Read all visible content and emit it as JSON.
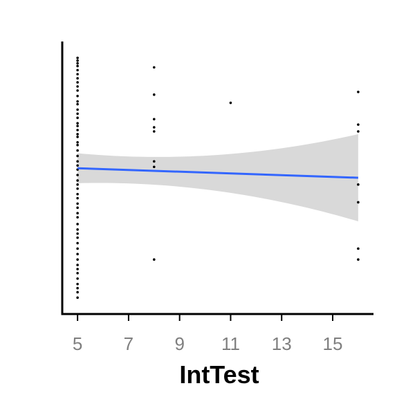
{
  "chart_data": {
    "type": "scatter",
    "title": "",
    "xlabel": "IntTest",
    "ylabel": "",
    "xlim": [
      4.4,
      16.6
    ],
    "ylim": [
      0,
      100
    ],
    "x_ticks": [
      5,
      7,
      9,
      11,
      13,
      15
    ],
    "x_tick_labels": [
      "5",
      "7",
      "9",
      "11",
      "13",
      "15"
    ],
    "y_tick_labels": [],
    "grid": false,
    "legend": "none",
    "points": [
      {
        "x": 5,
        "y": 94.0
      },
      {
        "x": 5,
        "y": 93.0
      },
      {
        "x": 5,
        "y": 92.0
      },
      {
        "x": 5,
        "y": 91.0
      },
      {
        "x": 5,
        "y": 89.5
      },
      {
        "x": 5,
        "y": 88.0
      },
      {
        "x": 5,
        "y": 86.5
      },
      {
        "x": 5,
        "y": 85.0
      },
      {
        "x": 5,
        "y": 83.5
      },
      {
        "x": 5,
        "y": 82.0
      },
      {
        "x": 5,
        "y": 80.0
      },
      {
        "x": 5,
        "y": 78.0
      },
      {
        "x": 5,
        "y": 77.0
      },
      {
        "x": 5,
        "y": 75.0
      },
      {
        "x": 5,
        "y": 73.5
      },
      {
        "x": 5,
        "y": 72.0
      },
      {
        "x": 5,
        "y": 70.0
      },
      {
        "x": 5,
        "y": 69.0
      },
      {
        "x": 5,
        "y": 67.5
      },
      {
        "x": 5,
        "y": 66.0
      },
      {
        "x": 5,
        "y": 65.0
      },
      {
        "x": 5,
        "y": 63.0
      },
      {
        "x": 5,
        "y": 62.0
      },
      {
        "x": 5,
        "y": 60.0
      },
      {
        "x": 5,
        "y": 58.0
      },
      {
        "x": 5,
        "y": 56.0
      },
      {
        "x": 5,
        "y": 54.5
      },
      {
        "x": 5,
        "y": 53.0
      },
      {
        "x": 5,
        "y": 51.0
      },
      {
        "x": 5,
        "y": 49.0
      },
      {
        "x": 5,
        "y": 47.5
      },
      {
        "x": 5,
        "y": 46.0
      },
      {
        "x": 5,
        "y": 44.0
      },
      {
        "x": 5,
        "y": 42.5
      },
      {
        "x": 5,
        "y": 40.5
      },
      {
        "x": 5,
        "y": 39.0
      },
      {
        "x": 5,
        "y": 37.0
      },
      {
        "x": 5,
        "y": 35.5
      },
      {
        "x": 5,
        "y": 33.0
      },
      {
        "x": 5,
        "y": 31.0
      },
      {
        "x": 5,
        "y": 29.5
      },
      {
        "x": 5,
        "y": 28.0
      },
      {
        "x": 5,
        "y": 26.0
      },
      {
        "x": 5,
        "y": 24.0
      },
      {
        "x": 5,
        "y": 22.0
      },
      {
        "x": 5,
        "y": 20.0
      },
      {
        "x": 5,
        "y": 18.0
      },
      {
        "x": 5,
        "y": 16.5
      },
      {
        "x": 5,
        "y": 15.0
      },
      {
        "x": 5,
        "y": 13.0
      },
      {
        "x": 5,
        "y": 11.0
      },
      {
        "x": 5,
        "y": 9.5
      },
      {
        "x": 5,
        "y": 8.0
      },
      {
        "x": 5,
        "y": 6.0
      },
      {
        "x": 8,
        "y": 90.5
      },
      {
        "x": 8,
        "y": 80.5
      },
      {
        "x": 8,
        "y": 71.5
      },
      {
        "x": 8,
        "y": 68.5
      },
      {
        "x": 8,
        "y": 67.0
      },
      {
        "x": 8,
        "y": 56.0
      },
      {
        "x": 8,
        "y": 54.0
      },
      {
        "x": 8,
        "y": 20.0
      },
      {
        "x": 11,
        "y": 77.5
      },
      {
        "x": 16,
        "y": 81.5
      },
      {
        "x": 16,
        "y": 69.5
      },
      {
        "x": 16,
        "y": 67.0
      },
      {
        "x": 16,
        "y": 47.5
      },
      {
        "x": 16,
        "y": 41.0
      },
      {
        "x": 16,
        "y": 24.0
      },
      {
        "x": 16,
        "y": 20.0
      }
    ],
    "series": [
      {
        "type": "smooth",
        "color": "#3366ff",
        "x": [
          5,
          16
        ],
        "fit": [
          53.5,
          50.0
        ],
        "ci_lower": [
          48.0,
          34.5
        ],
        "ci_upper": [
          59.0,
          66.5
        ]
      }
    ],
    "colors": {
      "points": "#000000",
      "fit_line": "#3366ff",
      "ribbon": "#d9d9d9",
      "axis": "#000000",
      "tick_labels": "#7f7f7f"
    }
  }
}
